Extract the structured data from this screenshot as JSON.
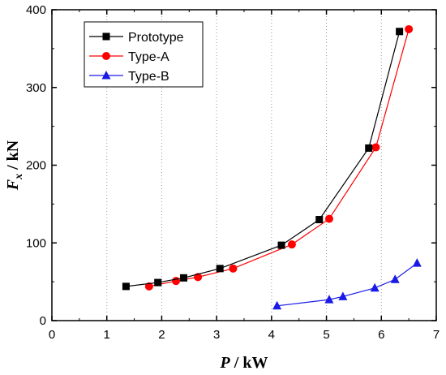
{
  "chart_data": {
    "type": "line",
    "title": "",
    "xlabel": {
      "var": "P",
      "unit": " / kW"
    },
    "ylabel": {
      "var": "F",
      "sub": "x",
      "unit": " / kN"
    },
    "xlim": [
      0,
      7
    ],
    "ylim": [
      0,
      400
    ],
    "xticks": [
      0,
      1,
      2,
      3,
      4,
      5,
      6,
      7
    ],
    "yticks": [
      0,
      100,
      200,
      300,
      400
    ],
    "grid": "vertical dotted",
    "legend_placement": "top-left",
    "series": [
      {
        "name": "Prototype",
        "color": "#000000",
        "marker": "square",
        "x": [
          1.35,
          1.93,
          2.4,
          3.06,
          4.18,
          4.87,
          5.77,
          6.33
        ],
        "y": [
          44,
          49,
          55,
          67,
          97,
          130,
          222,
          372
        ]
      },
      {
        "name": "Type-A",
        "color": "#ff0000",
        "marker": "circle",
        "x": [
          1.77,
          2.26,
          2.66,
          3.3,
          4.37,
          5.05,
          5.9,
          6.5
        ],
        "y": [
          44,
          51,
          56,
          67,
          98,
          131,
          223,
          375
        ]
      },
      {
        "name": "Type-B",
        "color": "#1a1ae6",
        "marker": "triangle",
        "x": [
          4.1,
          5.05,
          5.3,
          5.88,
          6.25,
          6.65
        ],
        "y": [
          19,
          27,
          31,
          42,
          53,
          74
        ]
      }
    ]
  }
}
